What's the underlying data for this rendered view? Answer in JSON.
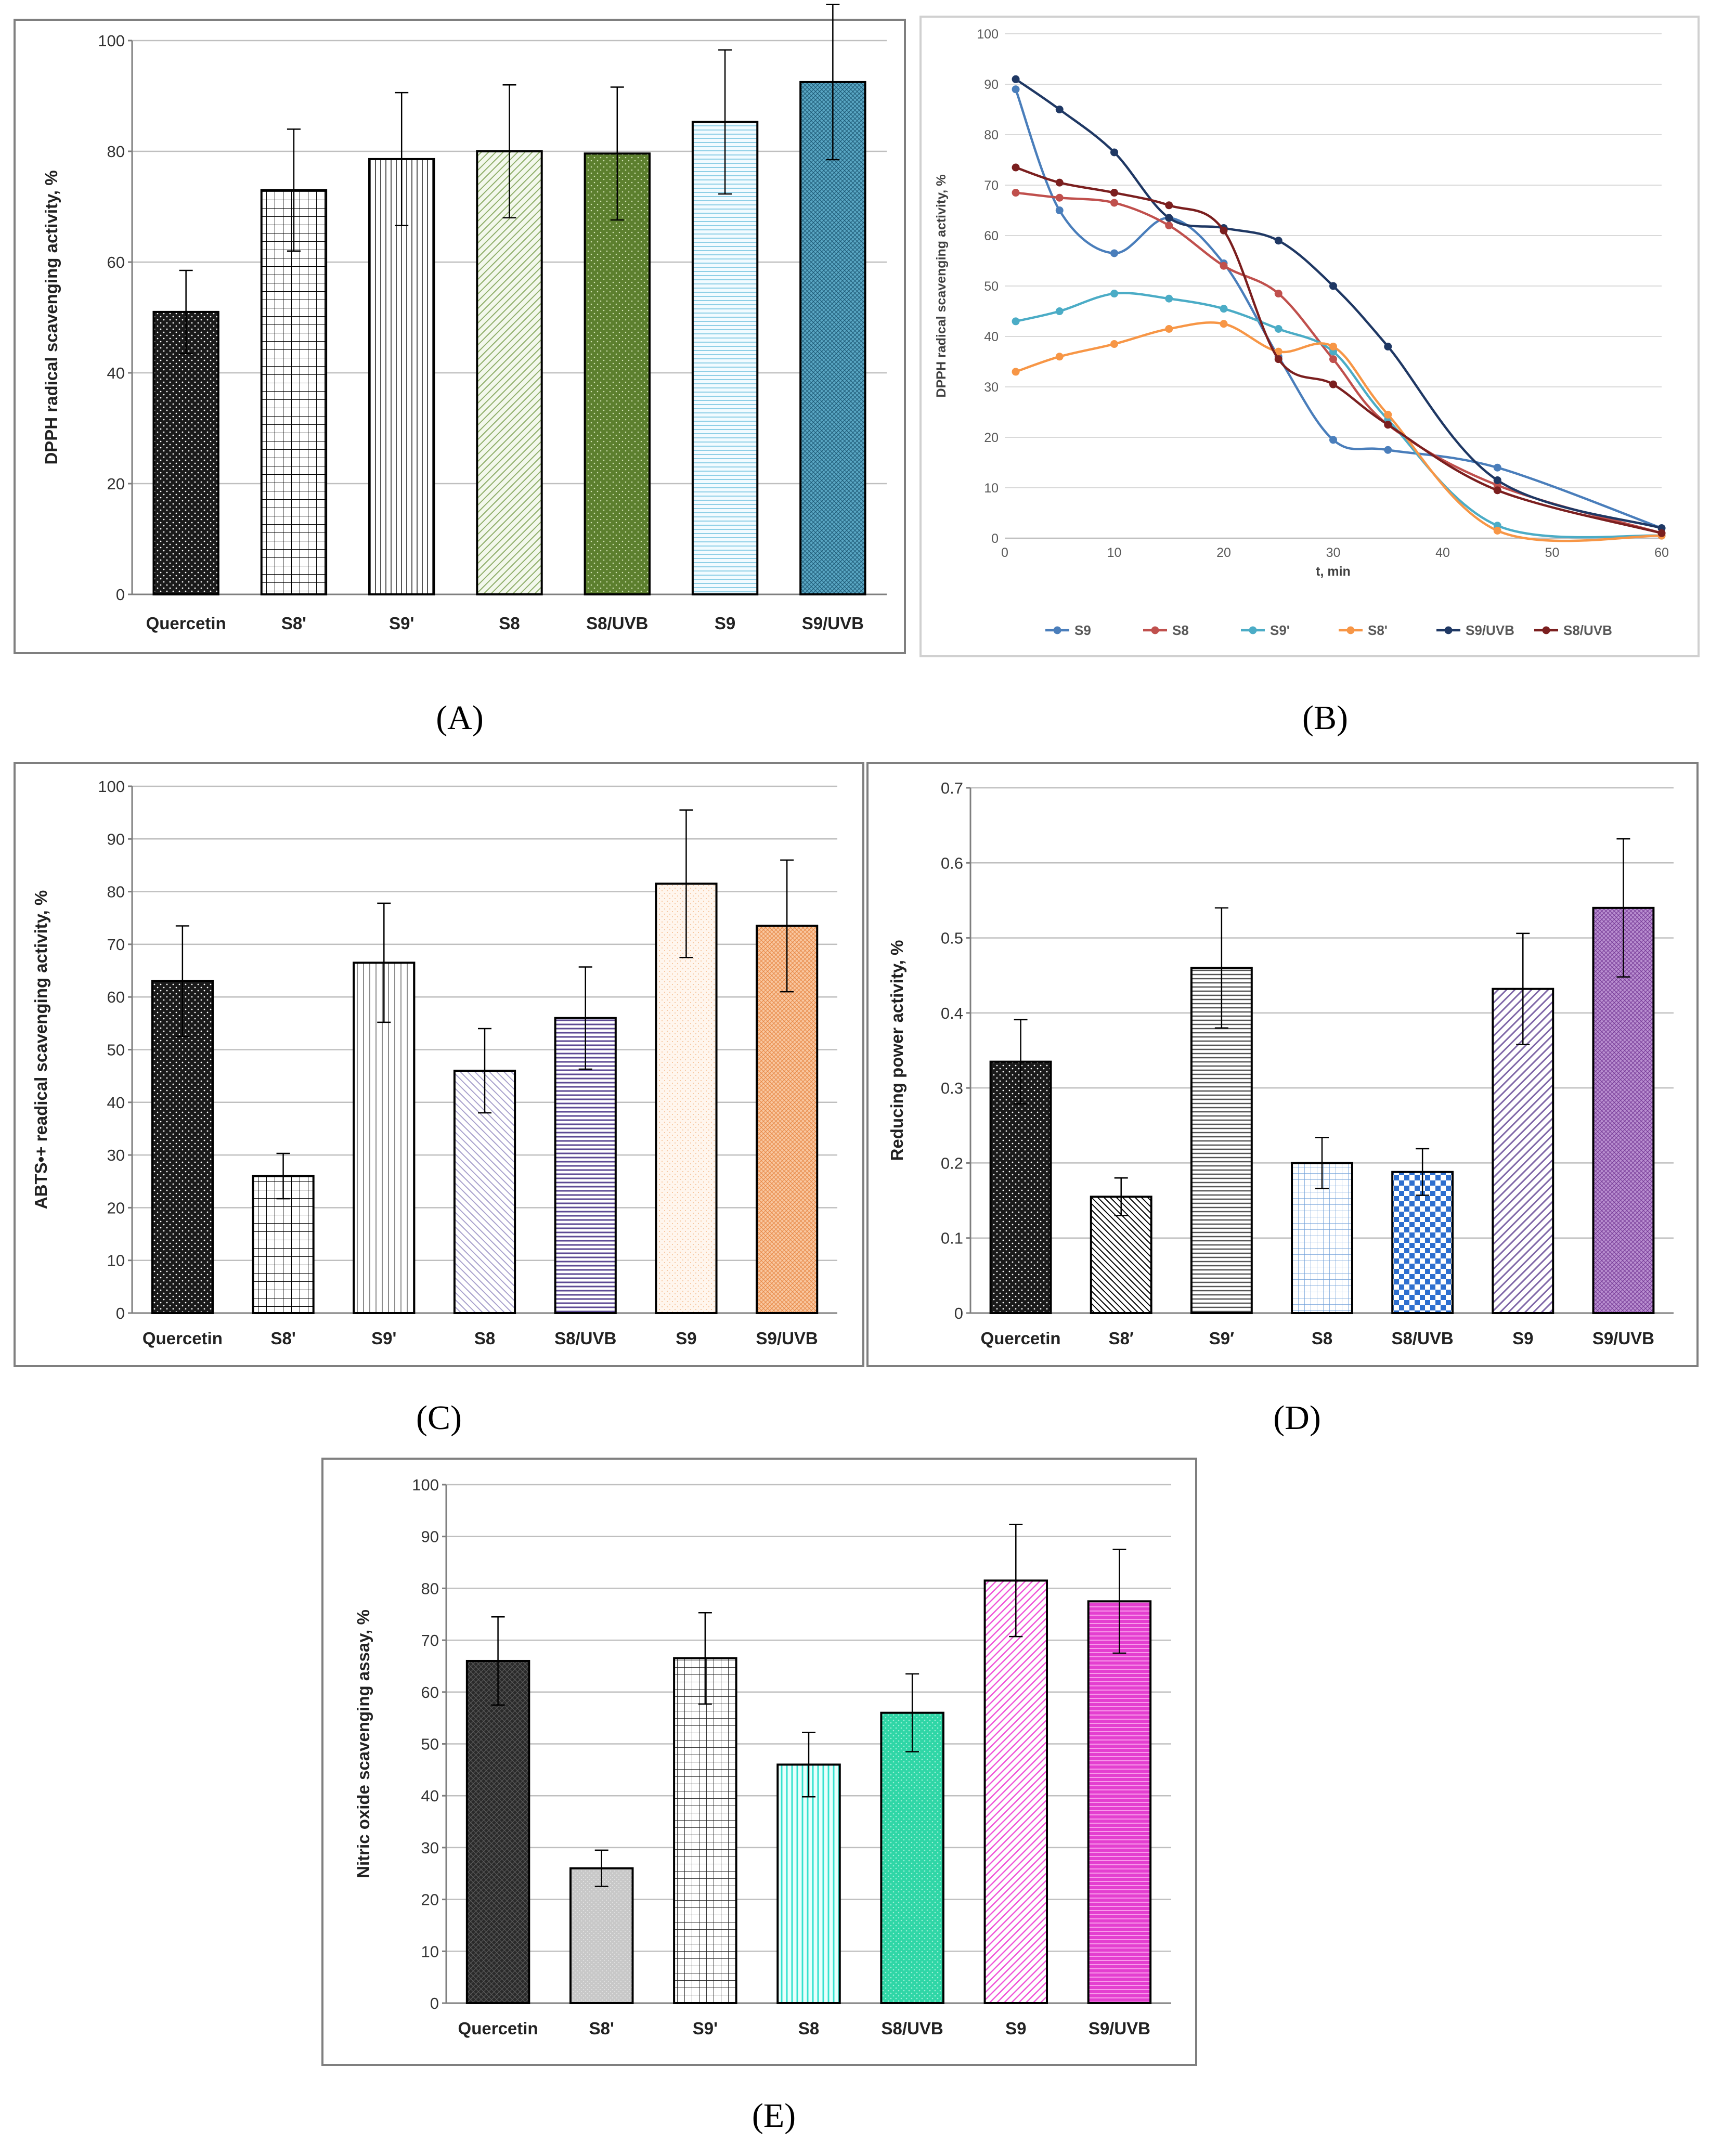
{
  "chart_data": [
    {
      "id": "A",
      "type": "bar",
      "panel_label": "(A)",
      "ylabel": "DPPH radical scavenging activity, %",
      "ylim": [
        0,
        100
      ],
      "yticks": [
        0,
        20,
        40,
        60,
        80,
        100
      ],
      "categories": [
        "Quercetin",
        "S8'",
        "S9'",
        "S8",
        "S8/UVB",
        "S9",
        "S9/UVB"
      ],
      "values": [
        51,
        73,
        78.6,
        80,
        79.6,
        85.3,
        92.5
      ],
      "errors": [
        7.5,
        11,
        12,
        12,
        12,
        13,
        14
      ]
    },
    {
      "id": "B",
      "type": "line",
      "panel_label": "(B)",
      "ylabel": "DPPH radical scavenging activity, %",
      "xlabel": "t, min",
      "xlim": [
        0,
        60
      ],
      "ylim": [
        0,
        100
      ],
      "xticks": [
        0,
        10,
        20,
        30,
        40,
        50,
        60
      ],
      "yticks": [
        0,
        10,
        20,
        30,
        40,
        50,
        60,
        70,
        80,
        90,
        100
      ],
      "series": [
        {
          "name": "S9",
          "color": "#4a7ebb",
          "x": [
            1,
            5,
            10,
            15,
            20,
            25,
            30,
            35,
            45,
            60
          ],
          "y": [
            89,
            65,
            56.5,
            63.5,
            54.5,
            36,
            19.5,
            17.5,
            14,
            2
          ]
        },
        {
          "name": "S8",
          "color": "#c0504d",
          "x": [
            1,
            5,
            10,
            15,
            20,
            25,
            30,
            35,
            45,
            60
          ],
          "y": [
            68.5,
            67.5,
            66.5,
            62,
            54,
            48.5,
            35.5,
            22.5,
            10.5,
            1
          ]
        },
        {
          "name": "S9'",
          "color": "#4bacc6",
          "x": [
            1,
            5,
            10,
            15,
            20,
            25,
            30,
            35,
            45,
            60
          ],
          "y": [
            43,
            45,
            48.5,
            47.5,
            45.5,
            41.5,
            37,
            23.5,
            2.5,
            0.5
          ]
        },
        {
          "name": "S8'",
          "color": "#f79646",
          "x": [
            1,
            5,
            10,
            15,
            20,
            25,
            30,
            35,
            45,
            60
          ],
          "y": [
            33,
            36,
            38.5,
            41.5,
            42.5,
            37,
            38,
            24.5,
            1.5,
            0.5
          ]
        },
        {
          "name": "S9/UVB",
          "color": "#1f3864",
          "x": [
            1,
            5,
            10,
            15,
            20,
            25,
            30,
            35,
            45,
            60
          ],
          "y": [
            91,
            85,
            76.5,
            63.5,
            61.5,
            59,
            50,
            38,
            11.5,
            2
          ]
        },
        {
          "name": "S8/UVB",
          "color": "#7b1f1f",
          "x": [
            1,
            5,
            10,
            15,
            20,
            25,
            30,
            35,
            45,
            60
          ],
          "y": [
            73.5,
            70.5,
            68.5,
            66,
            61,
            35.5,
            30.5,
            22.5,
            9.5,
            1
          ]
        }
      ]
    },
    {
      "id": "C",
      "type": "bar",
      "panel_label": "(C)",
      "ylabel": "ABTS•+ readical scavenging activity, %",
      "ylim": [
        0,
        100
      ],
      "yticks": [
        0,
        10,
        20,
        30,
        40,
        50,
        60,
        70,
        80,
        90,
        100
      ],
      "categories": [
        "Quercetin",
        "S8'",
        "S9'",
        "S8",
        "S8/UVB",
        "S9",
        "S9/UVB"
      ],
      "values": [
        63,
        26,
        66.5,
        46,
        56,
        81.5,
        73.5
      ],
      "errors": [
        10.5,
        4.3,
        11.3,
        8,
        9.7,
        14,
        12.5
      ]
    },
    {
      "id": "D",
      "type": "bar",
      "panel_label": "(D)",
      "ylabel": "Reducing power activity, %",
      "ylim": [
        0,
        0.7
      ],
      "yticks": [
        0,
        0.1,
        0.2,
        0.3,
        0.4,
        0.5,
        0.6,
        0.7
      ],
      "categories": [
        "Quercetin",
        "S8′",
        "S9′",
        "S8",
        "S8/UVB",
        "S9",
        "S9/UVB"
      ],
      "values": [
        0.335,
        0.155,
        0.46,
        0.2,
        0.188,
        0.432,
        0.54
      ],
      "errors": [
        0.056,
        0.025,
        0.08,
        0.034,
        0.031,
        0.074,
        0.092
      ]
    },
    {
      "id": "E",
      "type": "bar",
      "panel_label": "(E)",
      "ylabel": "Nitric oxide scavenging assay, %",
      "ylim": [
        0,
        100
      ],
      "yticks": [
        0,
        10,
        20,
        30,
        40,
        50,
        60,
        70,
        80,
        90,
        100
      ],
      "categories": [
        "Quercetin",
        "S8'",
        "S9'",
        "S8",
        "S8/UVB",
        "S9",
        "S9/UVB"
      ],
      "values": [
        66,
        26,
        66.5,
        46,
        56,
        81.5,
        77.5
      ],
      "errors": [
        8.5,
        3.5,
        8.8,
        6.2,
        7.5,
        10.8,
        10
      ]
    }
  ]
}
